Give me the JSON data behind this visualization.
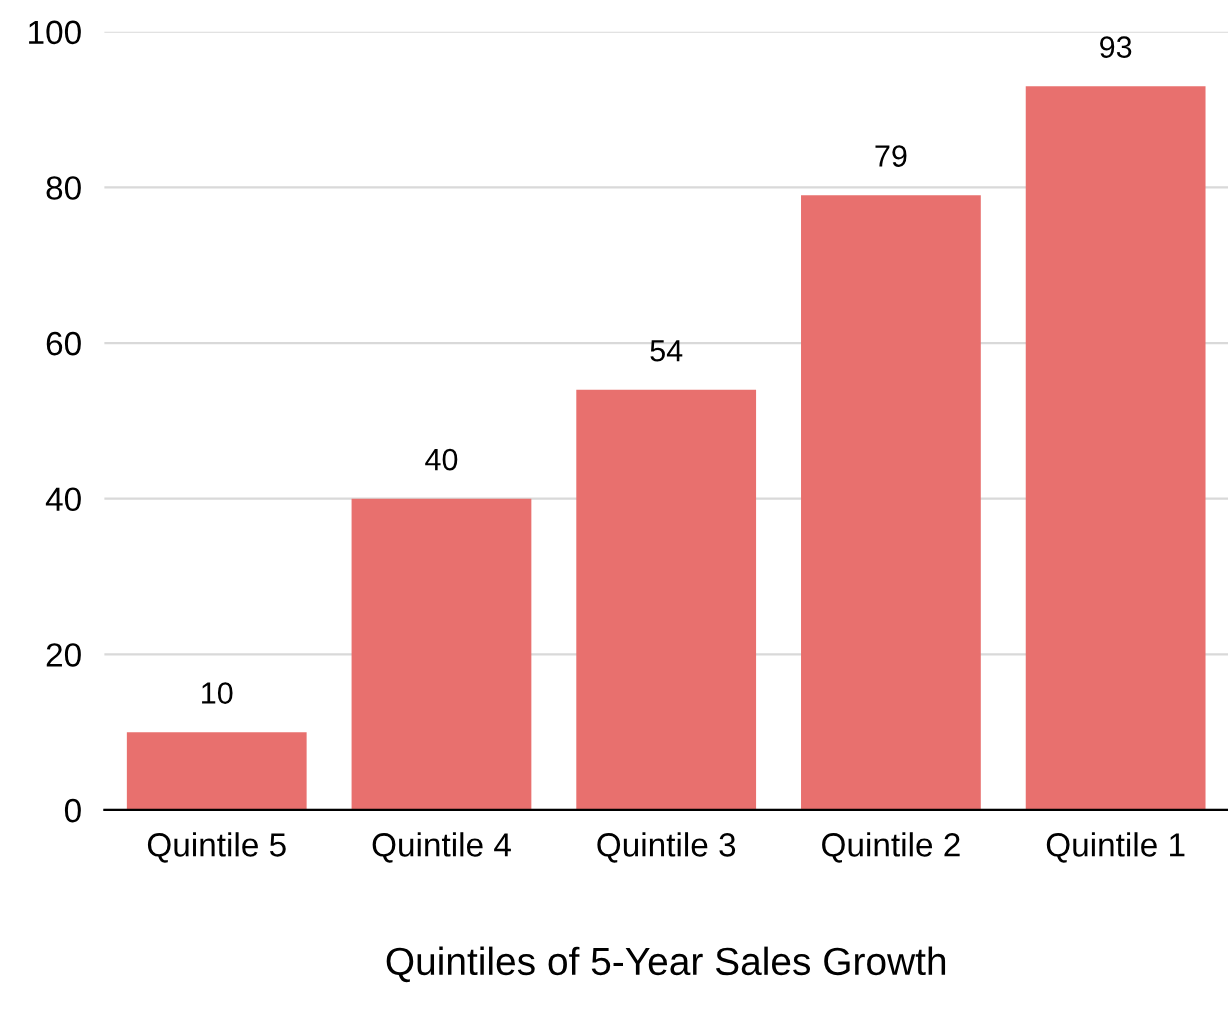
{
  "chart_data": {
    "type": "bar",
    "xlabel": "Quintiles of 5-Year Sales Growth",
    "categories": [
      "Quintile 5",
      "Quintile 4",
      "Quintile 3",
      "Quintile 2",
      "Quintile 1"
    ],
    "values": [
      10,
      40,
      54,
      79,
      93
    ],
    "color": "#e8706e",
    "ylim": [
      0,
      100
    ],
    "yticks": [
      0,
      20,
      40,
      60,
      80,
      100
    ],
    "grid": "y",
    "data_labels": true
  }
}
